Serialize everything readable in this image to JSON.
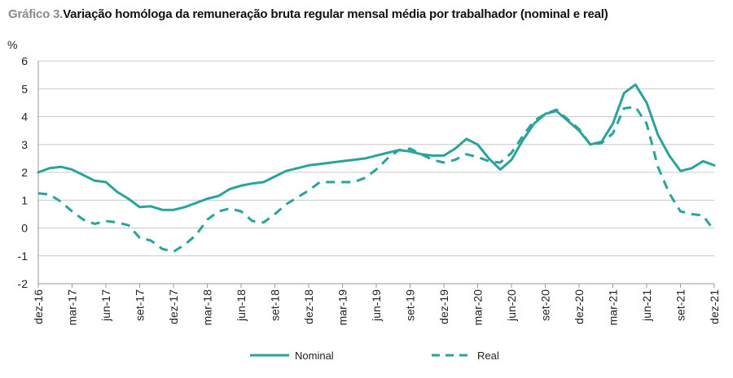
{
  "title": {
    "prefix": "Gráfico 3.",
    "text": "Variação homóloga da remuneração bruta regular mensal média por trabalhador (nominal e real)"
  },
  "chart_data": {
    "type": "line",
    "ylabel": "%",
    "ylim": [
      -2,
      6
    ],
    "yticks": [
      -2,
      -1,
      0,
      1,
      2,
      3,
      4,
      5,
      6
    ],
    "grid": "horizontal",
    "legend_position": "bottom",
    "categories": [
      "dez-16",
      "jan-17",
      "fev-17",
      "mar-17",
      "abr-17",
      "mai-17",
      "jun-17",
      "jul-17",
      "ago-17",
      "set-17",
      "out-17",
      "nov-17",
      "dez-17",
      "jan-18",
      "fev-18",
      "mar-18",
      "abr-18",
      "mai-18",
      "jun-18",
      "jul-18",
      "ago-18",
      "set-18",
      "out-18",
      "nov-18",
      "dez-18",
      "jan-19",
      "fev-19",
      "mar-19",
      "abr-19",
      "mai-19",
      "jun-19",
      "jul-19",
      "ago-19",
      "set-19",
      "out-19",
      "nov-19",
      "dez-19",
      "jan-20",
      "fev-20",
      "mar-20",
      "abr-20",
      "mai-20",
      "jun-20",
      "jul-20",
      "ago-20",
      "set-20",
      "out-20",
      "nov-20",
      "dez-20",
      "jan-21",
      "fev-21",
      "mar-21",
      "abr-21",
      "mai-21",
      "jun-21",
      "jul-21",
      "ago-21",
      "set-21",
      "out-21",
      "nov-21",
      "dez-21"
    ],
    "tick_labels": [
      "dez-16",
      "mar-17",
      "jun-17",
      "set-17",
      "dez-17",
      "mar-18",
      "jun-18",
      "set-18",
      "dez-18",
      "mar-19",
      "jun-19",
      "set-19",
      "dez-19",
      "mar-20",
      "jun-20",
      "set-20",
      "dez-20",
      "mar-21",
      "jun-21",
      "set-21",
      "dez-21"
    ],
    "series": [
      {
        "name": "Nominal",
        "style": "solid",
        "color": "#2aa39a",
        "values": [
          2.0,
          2.15,
          2.2,
          2.1,
          1.9,
          1.7,
          1.65,
          1.3,
          1.05,
          0.75,
          0.78,
          0.65,
          0.65,
          0.75,
          0.9,
          1.05,
          1.15,
          1.4,
          1.52,
          1.6,
          1.65,
          1.85,
          2.05,
          2.15,
          2.25,
          2.3,
          2.35,
          2.4,
          2.45,
          2.5,
          2.6,
          2.7,
          2.8,
          2.75,
          2.65,
          2.6,
          2.6,
          2.85,
          3.2,
          3.0,
          2.5,
          2.1,
          2.45,
          3.15,
          3.75,
          4.1,
          4.2,
          3.85,
          3.5,
          3.0,
          3.1,
          3.75,
          4.85,
          5.15,
          4.5,
          3.35,
          2.6,
          2.05,
          2.15,
          2.4,
          2.25
        ]
      },
      {
        "name": "Real",
        "style": "dashed",
        "color": "#2aa39a",
        "values": [
          1.25,
          1.2,
          0.95,
          0.6,
          0.3,
          0.15,
          0.25,
          0.2,
          0.1,
          -0.35,
          -0.45,
          -0.75,
          -0.85,
          -0.6,
          -0.25,
          0.3,
          0.6,
          0.7,
          0.6,
          0.25,
          0.2,
          0.5,
          0.85,
          1.1,
          1.35,
          1.65,
          1.65,
          1.65,
          1.65,
          1.8,
          2.1,
          2.5,
          2.8,
          2.85,
          2.65,
          2.45,
          2.35,
          2.45,
          2.65,
          2.55,
          2.4,
          2.35,
          2.7,
          3.3,
          3.85,
          4.1,
          4.25,
          3.9,
          3.55,
          3.0,
          3.05,
          3.4,
          4.3,
          4.35,
          3.75,
          2.2,
          1.25,
          0.6,
          0.5,
          0.45,
          -0.1
        ]
      }
    ]
  }
}
